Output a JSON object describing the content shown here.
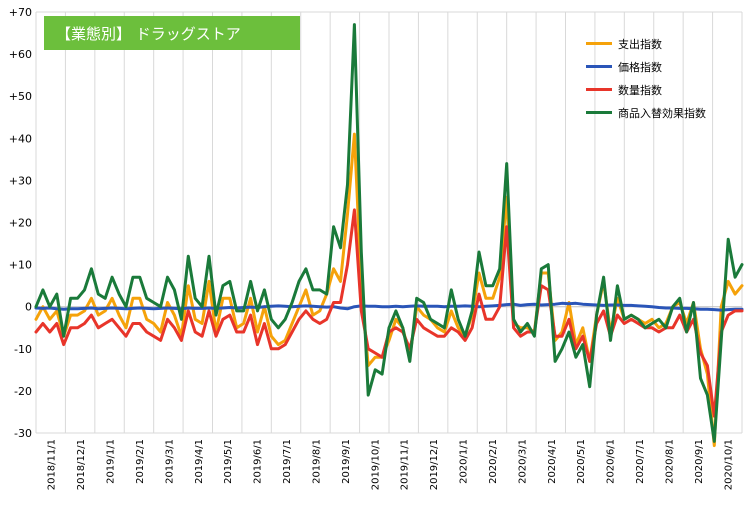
{
  "chart_data": {
    "type": "line",
    "title": "【業態別】 ドラッグストア",
    "ylim": [
      -30,
      70
    ],
    "yticks": [
      "+70",
      "+60",
      "+50",
      "+40",
      "+30",
      "+20",
      "+10",
      "0",
      "-10",
      "-20",
      "-30"
    ],
    "x_labels": [
      "2018/11/1",
      "2018/12/1",
      "2019/1/1",
      "2019/2/1",
      "2019/3/1",
      "2019/4/1",
      "2019/5/1",
      "2019/6/1",
      "2019/7/1",
      "2019/8/1",
      "2019/9/1",
      "2019/10/1",
      "2019/11/1",
      "2019/12/1",
      "2020/1/1",
      "2020/2/1",
      "2020/3/1",
      "2020/4/1",
      "2020/5/1",
      "2020/6/1",
      "2020/7/1",
      "2020/8/1",
      "2020/9/1",
      "2020/10/1"
    ],
    "grid": "vertical",
    "legend_position": "top-right",
    "series": [
      {
        "name": "支出指数",
        "color": "#f5a20a",
        "values": [
          -3,
          0,
          -3,
          -1,
          -7,
          -2,
          -2,
          -1,
          2,
          -2,
          -1,
          2,
          -2,
          -5,
          2,
          2,
          -3,
          -4,
          -6,
          1,
          -2,
          -7,
          5,
          -3,
          -4,
          6,
          -6,
          2,
          2,
          -5,
          -4,
          2,
          -6,
          0,
          -7,
          -9,
          -8,
          -4,
          0,
          4,
          -2,
          -1,
          3,
          9,
          6,
          22,
          41,
          5,
          -14,
          -12,
          -12,
          -8,
          -3,
          -5,
          -12,
          0,
          -2,
          -3,
          -5,
          -6,
          -1,
          -5,
          -7,
          -2,
          8,
          2,
          2,
          7,
          26,
          -4,
          -5,
          -5,
          -6,
          8,
          8,
          -8,
          -6,
          1,
          -9,
          -5,
          -13,
          -2,
          6,
          -6,
          2,
          -3,
          -2,
          -3,
          -4,
          -3,
          -5,
          -4,
          0,
          1,
          -4,
          1,
          -10,
          -16,
          -33,
          0,
          6,
          3,
          5
        ]
      },
      {
        "name": "価格指数",
        "color": "#2a55b8",
        "values": [
          -0.3,
          -0.4,
          -0.3,
          -0.5,
          -0.6,
          -0.5,
          -0.5,
          -0.4,
          -0.3,
          -0.5,
          -0.4,
          -0.3,
          -0.4,
          -0.5,
          -0.4,
          -0.3,
          -0.4,
          -0.5,
          -0.4,
          -0.3,
          -0.4,
          -0.5,
          -0.3,
          -0.4,
          -0.4,
          -0.3,
          -0.4,
          -0.3,
          -0.2,
          -0.3,
          -0.2,
          -0.1,
          -0.2,
          0.0,
          0.1,
          0.2,
          0.1,
          0.0,
          0.1,
          0.2,
          0.1,
          0.0,
          -0.1,
          0.0,
          -0.3,
          -0.5,
          0.0,
          0.2,
          0.1,
          0.1,
          0.0,
          0.0,
          0.1,
          0.0,
          0.1,
          0.2,
          0.1,
          0.1,
          0.1,
          0.0,
          0.1,
          0.1,
          0.2,
          0.1,
          0.0,
          0.1,
          0.2,
          0.3,
          0.5,
          0.6,
          0.3,
          0.5,
          0.6,
          0.4,
          0.5,
          0.6,
          0.8,
          0.7,
          0.8,
          0.6,
          0.5,
          0.4,
          0.3,
          0.4,
          0.4,
          0.3,
          0.3,
          0.2,
          0.1,
          0.0,
          -0.2,
          -0.3,
          -0.3,
          -0.4,
          -0.4,
          -0.5,
          -0.6,
          -0.6,
          -0.7,
          -0.8,
          -0.7,
          -0.6,
          -0.6
        ]
      },
      {
        "name": "数量指数",
        "color": "#e8352a",
        "values": [
          -6,
          -4,
          -6,
          -4,
          -9,
          -5,
          -5,
          -4,
          -2,
          -5,
          -4,
          -3,
          -5,
          -7,
          -4,
          -4,
          -6,
          -7,
          -8,
          -3,
          -5,
          -8,
          -1,
          -6,
          -7,
          -1,
          -7,
          -3,
          -2,
          -6,
          -6,
          -2,
          -9,
          -4,
          -10,
          -10,
          -9,
          -6,
          -3,
          -1,
          -3,
          -4,
          -3,
          1,
          1,
          10,
          23,
          -1,
          -10,
          -11,
          -12,
          -6,
          -5,
          -6,
          -10,
          -3,
          -5,
          -6,
          -7,
          -7,
          -5,
          -6,
          -8,
          -5,
          3,
          -3,
          -3,
          0,
          19,
          -5,
          -7,
          -6,
          -6,
          5,
          4,
          -7,
          -7,
          -3,
          -10,
          -7,
          -13,
          -4,
          -1,
          -7,
          -2,
          -4,
          -3,
          -4,
          -5,
          -5,
          -6,
          -5,
          -5,
          -2,
          -6,
          -3,
          -11,
          -14,
          -26,
          -6,
          -2,
          -1,
          -1
        ]
      },
      {
        "name": "商品入替効果指数",
        "color": "#1a7a3a",
        "values": [
          0,
          4,
          0,
          3,
          -7,
          2,
          2,
          4,
          9,
          3,
          2,
          7,
          3,
          0,
          7,
          7,
          2,
          1,
          0,
          7,
          4,
          -3,
          12,
          2,
          0,
          12,
          -2,
          5,
          6,
          -1,
          -1,
          6,
          -1,
          4,
          -3,
          -5,
          -3,
          1,
          6,
          9,
          4,
          4,
          3,
          19,
          14,
          29,
          67,
          13,
          -21,
          -15,
          -16,
          -5,
          -1,
          -5,
          -13,
          2,
          1,
          -3,
          -4,
          -5,
          4,
          -3,
          -7,
          -1,
          13,
          5,
          5,
          9,
          34,
          -3,
          -6,
          -4,
          -7,
          9,
          10,
          -13,
          -10,
          -6,
          -12,
          -9,
          -19,
          -2,
          7,
          -8,
          5,
          -3,
          -2,
          -3,
          -5,
          -4,
          -3,
          -5,
          0,
          2,
          -6,
          1,
          -17,
          -21,
          -32,
          -8,
          16,
          7,
          10
        ]
      }
    ]
  }
}
